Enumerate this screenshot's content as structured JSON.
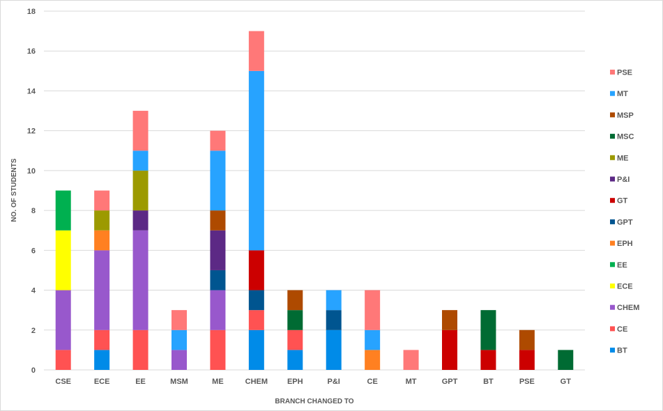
{
  "chart_data": {
    "type": "bar",
    "stacked": true,
    "title": "",
    "xlabel": "BRANCH CHANGED TO",
    "ylabel": "NO. OF STUDENTS",
    "ylim": [
      0,
      18
    ],
    "yticks": [
      0,
      2,
      4,
      6,
      8,
      10,
      12,
      14,
      16,
      18
    ],
    "grid": true,
    "legend_position": "right",
    "categories": [
      "CSE",
      "ECE",
      "EE",
      "MSM",
      "ME",
      "CHEM",
      "EPH",
      "P&I",
      "CE",
      "MT",
      "GPT",
      "BT",
      "PSE",
      "GT"
    ],
    "series": [
      {
        "name": "BT",
        "color": "#008be8",
        "values": [
          0,
          1,
          0,
          0,
          0,
          2,
          1,
          2,
          0,
          0,
          0,
          0,
          0,
          0
        ]
      },
      {
        "name": "CE",
        "color": "#ff5252",
        "values": [
          1,
          1,
          2,
          0,
          2,
          1,
          1,
          0,
          0,
          0,
          0,
          0,
          0,
          0
        ]
      },
      {
        "name": "CHEM",
        "color": "#9858cc",
        "values": [
          3,
          4,
          5,
          1,
          2,
          0,
          0,
          0,
          0,
          0,
          0,
          0,
          0,
          0
        ]
      },
      {
        "name": "ECE",
        "color": "#ffff00",
        "values": [
          3,
          0,
          0,
          0,
          0,
          0,
          0,
          0,
          0,
          0,
          0,
          0,
          0,
          0
        ]
      },
      {
        "name": "EE",
        "color": "#00b050",
        "values": [
          2,
          0,
          0,
          0,
          0,
          0,
          0,
          0,
          0,
          0,
          0,
          0,
          0,
          0
        ]
      },
      {
        "name": "EPH",
        "color": "#ff8021",
        "values": [
          0,
          1,
          0,
          0,
          0,
          0,
          0,
          0,
          1,
          0,
          0,
          0,
          0,
          0
        ]
      },
      {
        "name": "GPT",
        "color": "#005590",
        "values": [
          0,
          0,
          0,
          0,
          1,
          1,
          0,
          1,
          0,
          0,
          0,
          0,
          0,
          0
        ]
      },
      {
        "name": "GT",
        "color": "#cc0000",
        "values": [
          0,
          0,
          0,
          0,
          0,
          2,
          0,
          0,
          0,
          0,
          2,
          1,
          1,
          0
        ]
      },
      {
        "name": "P&I",
        "color": "#5c2985",
        "values": [
          0,
          0,
          1,
          0,
          2,
          0,
          0,
          0,
          0,
          0,
          0,
          0,
          0,
          0
        ]
      },
      {
        "name": "ME",
        "color": "#9c9a00",
        "values": [
          0,
          1,
          2,
          0,
          0,
          0,
          0,
          0,
          0,
          0,
          0,
          0,
          0,
          0
        ]
      },
      {
        "name": "MSC",
        "color": "#006b33",
        "values": [
          0,
          0,
          0,
          0,
          0,
          0,
          1,
          0,
          0,
          0,
          0,
          2,
          0,
          1
        ]
      },
      {
        "name": "MSP",
        "color": "#ae4a00",
        "values": [
          0,
          0,
          0,
          0,
          1,
          0,
          1,
          0,
          0,
          0,
          1,
          0,
          1,
          0
        ]
      },
      {
        "name": "MT",
        "color": "#27a3ff",
        "values": [
          0,
          0,
          1,
          1,
          3,
          9,
          0,
          1,
          1,
          0,
          0,
          0,
          0,
          0
        ]
      },
      {
        "name": "PSE",
        "color": "#ff7878",
        "values": [
          0,
          1,
          2,
          1,
          1,
          2,
          0,
          0,
          2,
          1,
          0,
          0,
          0,
          0
        ]
      }
    ]
  }
}
